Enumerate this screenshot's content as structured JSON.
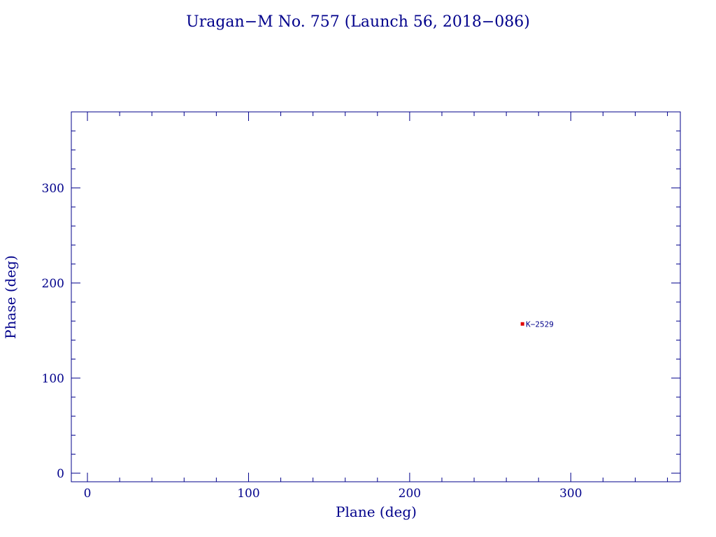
{
  "chart_data": {
    "type": "scatter",
    "title": "Uragan−M No. 757 (Launch 56, 2018−086)",
    "xlabel": "Plane (deg)",
    "ylabel": "Phase (deg)",
    "xlim": [
      -10,
      368
    ],
    "ylim": [
      -9,
      380
    ],
    "xticks": [
      0,
      100,
      200,
      300
    ],
    "xtick_labels": [
      "0",
      "100",
      "200",
      "300"
    ],
    "yticks": [
      0,
      100,
      200,
      300
    ],
    "ytick_labels": [
      "0",
      "100",
      "200",
      "300"
    ],
    "x_minor_step": 20,
    "y_minor_step": 20,
    "grid": false,
    "points": [
      {
        "x": 270,
        "y": 157,
        "label": "K−2529"
      }
    ]
  },
  "colors": {
    "axis": "#00008b",
    "text": "#00008b",
    "marker": "#e00000"
  }
}
